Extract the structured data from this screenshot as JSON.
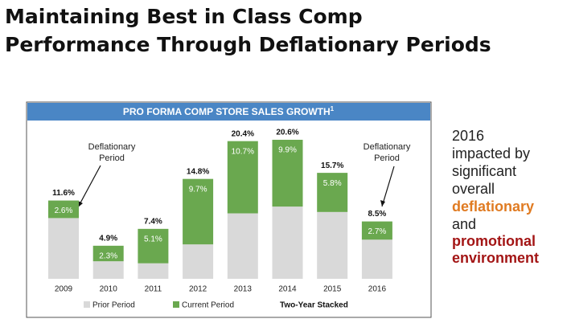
{
  "slide_title_lines": [
    "Maintaining Best in Class Comp",
    "Performance Through Deflationary Periods"
  ],
  "chart_data": {
    "type": "stacked_bar",
    "title": "PRO FORMA COMP STORE SALES GROWTH",
    "title_footnote": "1",
    "categories": [
      "2009",
      "2010",
      "2011",
      "2012",
      "2013",
      "2014",
      "2015",
      "2016"
    ],
    "series": [
      {
        "name": "Prior Period",
        "color": "#d9d9d9",
        "values": [
          9.0,
          2.6,
          2.3,
          5.1,
          9.7,
          10.7,
          9.9,
          5.8
        ]
      },
      {
        "name": "Current Period",
        "color": "#6aa84f",
        "values": [
          2.6,
          2.3,
          5.1,
          9.7,
          10.7,
          9.9,
          5.8,
          2.7
        ],
        "value_labels": [
          "2.6%",
          "2.3%",
          "5.1%",
          "9.7%",
          "10.7%",
          "9.9%",
          "5.8%",
          "2.7%"
        ]
      }
    ],
    "totals": [
      11.6,
      4.9,
      7.4,
      14.8,
      20.4,
      20.6,
      15.7,
      8.5
    ],
    "total_labels": [
      "11.6%",
      "4.9%",
      "7.4%",
      "14.8%",
      "20.4%",
      "20.6%",
      "15.7%",
      "8.5%"
    ],
    "legend_note": "Two-Year Stacked",
    "annotations": [
      {
        "lines": [
          "Deflationary",
          "Period"
        ]
      },
      {
        "lines": [
          "Deflationary",
          "Period"
        ]
      }
    ]
  },
  "side_note": {
    "lines": [
      "2016",
      "impacted by",
      "significant",
      "overall",
      "deflationary",
      "and",
      "promotional",
      "environment"
    ]
  }
}
